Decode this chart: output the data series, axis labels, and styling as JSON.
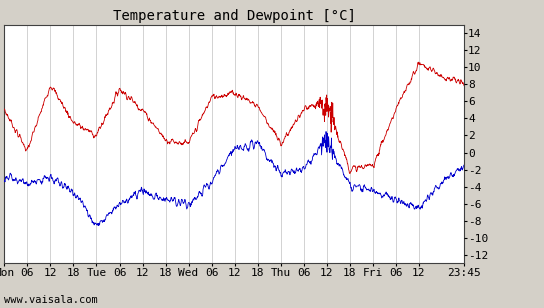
{
  "title": "Temperature and Dewpoint [°C]",
  "ylabel_right_ticks": [
    -12,
    -10,
    -8,
    -6,
    -4,
    -2,
    0,
    2,
    4,
    6,
    8,
    10,
    12,
    14
  ],
  "ylim": [
    -13,
    15
  ],
  "xtick_hours": [
    0,
    6,
    12,
    18,
    24,
    30,
    36,
    42,
    48,
    54,
    60,
    66,
    72,
    78,
    84,
    90,
    96,
    102,
    108,
    119.75
  ],
  "x_tick_labels": [
    "Mon",
    "06",
    "12",
    "18",
    "Tue",
    "06",
    "12",
    "18",
    "Wed",
    "06",
    "12",
    "18",
    "Thu",
    "06",
    "12",
    "18",
    "Fri",
    "06",
    "12",
    "23:45"
  ],
  "xlim": [
    0,
    119.75
  ],
  "watermark": "www.vaisala.com",
  "bg_color": "#d4d0c8",
  "plot_bg_color": "#ffffff",
  "temp_color": "#cc0000",
  "dewp_color": "#0000cc",
  "grid_color": "#c0c0c0",
  "title_fontsize": 10,
  "tick_fontsize": 8,
  "watermark_fontsize": 7.5
}
